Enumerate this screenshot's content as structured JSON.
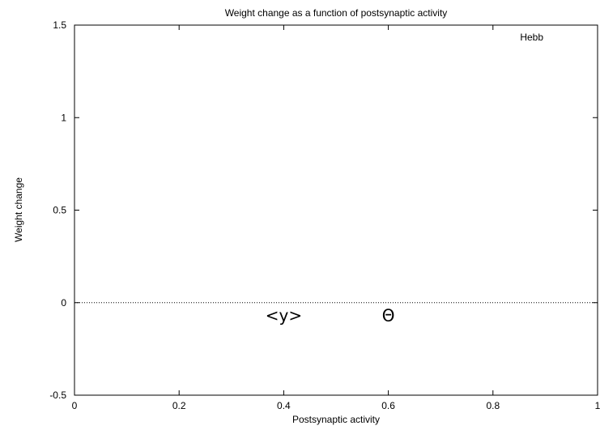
{
  "chart_data": {
    "type": "line",
    "title": "Weight change as a function of postsynaptic activity",
    "xlabel": "Postsynaptic activity",
    "ylabel": "Weight change",
    "xlim": [
      0,
      1
    ],
    "ylim": [
      -0.5,
      1.5
    ],
    "xticks": [
      0,
      0.2,
      0.4,
      0.6,
      0.8,
      1
    ],
    "xtick_labels": [
      "0",
      "0.2",
      "0.4",
      "0.6",
      "0.8",
      "1"
    ],
    "yticks": [
      -0.5,
      0,
      0.5,
      1,
      1.5
    ],
    "ytick_labels": [
      "-0.5",
      "0",
      "0.5",
      "1",
      "1.5"
    ],
    "grid": false,
    "legend": {
      "position": "top-right",
      "entries": [
        "Hebb"
      ]
    },
    "reference_lines": [
      {
        "y": 0,
        "style": "dotted"
      }
    ],
    "series": [
      {
        "name": "Hebb",
        "x": [],
        "y": []
      }
    ],
    "annotations": [
      {
        "text": "<y>",
        "x": 0.4,
        "y": -0.07
      },
      {
        "text": "Θ",
        "x": 0.6,
        "y": -0.07
      }
    ]
  }
}
